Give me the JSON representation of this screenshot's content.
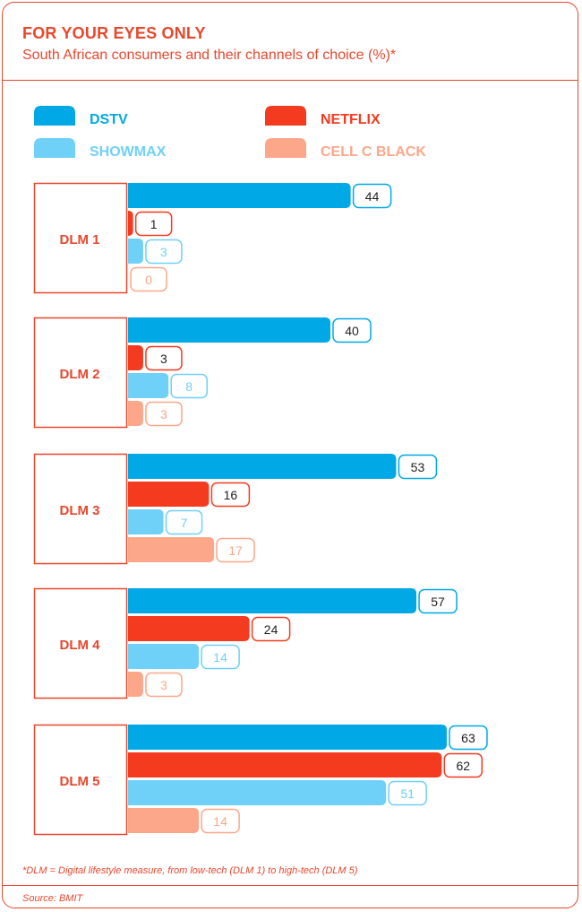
{
  "header": {
    "title": "FOR YOUR EYES ONLY",
    "subtitle": "South African consumers and their channels of choice (%)*"
  },
  "footer": {
    "footnote": "*DLM = Digital lifestyle measure, from low-tech (DLM 1) to high-tech (DLM 5)",
    "source": "Source: BMIT"
  },
  "colors": {
    "accent": "#e8472c",
    "dstv": "#00a8e6",
    "netflix": "#f53b1f",
    "showmax": "#6fd0f8",
    "cellc": "#fca789"
  },
  "chart_data": {
    "type": "bar",
    "orientation": "horizontal",
    "title": "FOR YOUR EYES ONLY",
    "subtitle": "South African consumers and their channels of choice (%)*",
    "xlabel": "",
    "ylabel": "",
    "xlim": [
      0,
      70
    ],
    "grid": false,
    "legend_position": "top",
    "categories": [
      "DLM 1",
      "DLM 2",
      "DLM 3",
      "DLM 4",
      "DLM 5"
    ],
    "series": [
      {
        "name": "DSTV",
        "color_key": "dstv",
        "values": [
          44,
          40,
          53,
          57,
          63
        ]
      },
      {
        "name": "NETFLIX",
        "color_key": "netflix",
        "values": [
          1,
          3,
          16,
          24,
          62
        ]
      },
      {
        "name": "SHOWMAX",
        "color_key": "showmax",
        "values": [
          3,
          8,
          7,
          14,
          51
        ]
      },
      {
        "name": "CELL C BLACK",
        "color_key": "cellc",
        "values": [
          0,
          3,
          17,
          3,
          14
        ]
      }
    ]
  }
}
